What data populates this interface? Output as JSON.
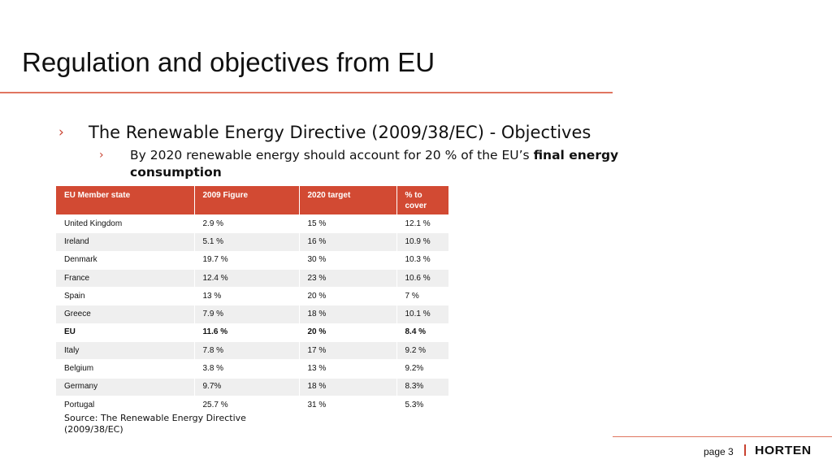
{
  "slide": {
    "title": "Regulation and objectives from EU"
  },
  "bullets": {
    "level1": {
      "marker": "›",
      "text": "The Renewable Energy Directive (2009/38/EC) - Objectives"
    },
    "level2": {
      "marker": "›",
      "text_regular": "By 2020 renewable energy should account for 20 % of the EU’s ",
      "text_bold": "final energy consumption"
    }
  },
  "table": {
    "headers": [
      "EU Member state",
      "2009 Figure",
      "2020 target",
      "% to cover"
    ],
    "rows": [
      [
        "United Kingdom",
        "2.9 %",
        "15 %",
        "12.1 %"
      ],
      [
        "Ireland",
        "5.1 %",
        "16  %",
        "10.9 %"
      ],
      [
        "Denmark",
        "19.7 %",
        "30 %",
        "10.3 %"
      ],
      [
        "France",
        "12.4 %",
        "23 %",
        "10.6  %"
      ],
      [
        "Spain",
        "13 %",
        "20 %",
        "7  %"
      ],
      [
        "Greece",
        "7.9 %",
        "18 %",
        "10.1 %"
      ],
      [
        "EU",
        "11.6 %",
        "20 %",
        "8.4  %"
      ],
      [
        "Italy",
        "7.8 %",
        "17 %",
        "9.2 %"
      ],
      [
        "Belgium",
        "3.8 %",
        "13 %",
        "9.2%"
      ],
      [
        "Germany",
        "9.7%",
        "18 %",
        "8.3%"
      ],
      [
        "Portugal",
        "25.7 %",
        "31 %",
        "5.3%"
      ]
    ],
    "bold_row": "EU"
  },
  "source": "Source: The Renewable Energy Directive (2009/38/EC)",
  "footer": {
    "page_label": "page 3",
    "logo_text": "HORTEN"
  },
  "colors": {
    "accent": "#d24a33",
    "rule": "#e07560",
    "row_stripe": "#efefef"
  }
}
